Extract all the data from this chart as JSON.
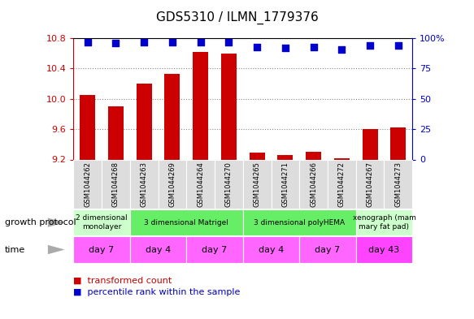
{
  "title": "GDS5310 / ILMN_1779376",
  "samples": [
    "GSM1044262",
    "GSM1044268",
    "GSM1044263",
    "GSM1044269",
    "GSM1044264",
    "GSM1044270",
    "GSM1044265",
    "GSM1044271",
    "GSM1044266",
    "GSM1044272",
    "GSM1044267",
    "GSM1044273"
  ],
  "bar_values": [
    10.05,
    9.9,
    10.2,
    10.33,
    10.62,
    10.6,
    9.29,
    9.26,
    9.3,
    9.22,
    9.6,
    9.62
  ],
  "dot_values": [
    97,
    96,
    97,
    97,
    97,
    97,
    93,
    92,
    93,
    91,
    94,
    94
  ],
  "ylim": [
    9.2,
    10.8
  ],
  "y2lim": [
    0,
    100
  ],
  "yticks": [
    9.2,
    9.6,
    10.0,
    10.4,
    10.8
  ],
  "y2ticks": [
    0,
    25,
    50,
    75,
    100
  ],
  "bar_color": "#cc0000",
  "dot_color": "#0000cc",
  "growth_protocol_groups": [
    {
      "label": "2 dimensional\nmonolayer",
      "start": 0,
      "end": 2,
      "color": "#ccffcc"
    },
    {
      "label": "3 dimensional Matrigel",
      "start": 2,
      "end": 6,
      "color": "#66ee66"
    },
    {
      "label": "3 dimensional polyHEMA",
      "start": 6,
      "end": 10,
      "color": "#66ee66"
    },
    {
      "label": "xenograph (mam\nmary fat pad)",
      "start": 10,
      "end": 12,
      "color": "#ccffcc"
    }
  ],
  "time_groups": [
    {
      "label": "day 7",
      "start": 0,
      "end": 2,
      "color": "#ff66ff"
    },
    {
      "label": "day 4",
      "start": 2,
      "end": 4,
      "color": "#ff66ff"
    },
    {
      "label": "day 7",
      "start": 4,
      "end": 6,
      "color": "#ff66ff"
    },
    {
      "label": "day 4",
      "start": 6,
      "end": 8,
      "color": "#ff66ff"
    },
    {
      "label": "day 7",
      "start": 8,
      "end": 10,
      "color": "#ff66ff"
    },
    {
      "label": "day 43",
      "start": 10,
      "end": 12,
      "color": "#ff44ff"
    }
  ],
  "growth_protocol_label": "growth protocol",
  "time_label": "time",
  "sample_bg_color": "#dddddd",
  "bg_color": "#ffffff"
}
